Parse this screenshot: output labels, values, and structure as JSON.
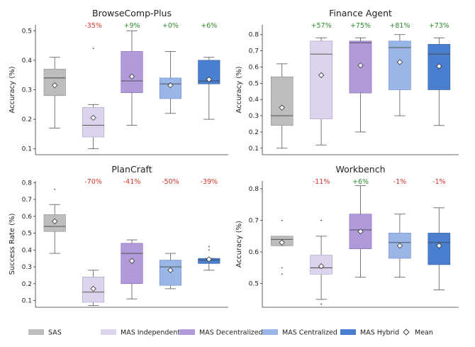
{
  "legend": [
    {
      "label": "SAS",
      "color": "#bdbdbd",
      "stroke": "#8a8a8a"
    },
    {
      "label": "MAS Independent",
      "color": "#dcd4ec",
      "stroke": "#a89cc4"
    },
    {
      "label": "MAS Decentralized",
      "color": "#b19ad9",
      "stroke": "#7f66b0"
    },
    {
      "label": "MAS Centralized",
      "color": "#9ab6e6",
      "stroke": "#6a8cc8"
    },
    {
      "label": "MAS Hybrid",
      "color": "#4a7fd0",
      "stroke": "#2d5aa0"
    },
    {
      "label": "Mean",
      "marker": "diamond"
    }
  ],
  "chart_data": [
    {
      "type": "box",
      "title": "BrowseComp-Plus",
      "ylabel": "Accuracy (%)",
      "ylim": [
        0.08,
        0.52
      ],
      "yticks": [
        0.1,
        0.2,
        0.3,
        0.4,
        0.5
      ],
      "ytick_labels": [
        "0.1",
        "0.2",
        "0.3",
        "0.4",
        "0.5"
      ],
      "series": [
        {
          "name": "SAS",
          "whisker_low": 0.17,
          "q1": 0.28,
          "median": 0.34,
          "q3": 0.37,
          "whisker_high": 0.41,
          "mean": 0.315,
          "outliers": [],
          "annotation": ""
        },
        {
          "name": "MAS Independent",
          "whisker_low": 0.1,
          "q1": 0.14,
          "median": 0.18,
          "q3": 0.24,
          "whisker_high": 0.25,
          "mean": 0.205,
          "outliers": [
            0.44
          ],
          "annotation": "-35%"
        },
        {
          "name": "MAS Decentralized",
          "whisker_low": 0.18,
          "q1": 0.29,
          "median": 0.33,
          "q3": 0.43,
          "whisker_high": 0.5,
          "mean": 0.345,
          "outliers": [],
          "annotation": "+9%"
        },
        {
          "name": "MAS Centralized",
          "whisker_low": 0.22,
          "q1": 0.27,
          "median": 0.32,
          "q3": 0.34,
          "whisker_high": 0.43,
          "mean": 0.315,
          "outliers": [],
          "annotation": "+0%"
        },
        {
          "name": "MAS Hybrid",
          "whisker_low": 0.2,
          "q1": 0.32,
          "median": 0.33,
          "q3": 0.4,
          "whisker_high": 0.41,
          "mean": 0.335,
          "outliers": [],
          "annotation": "+6%"
        }
      ]
    },
    {
      "type": "box",
      "title": "Finance Agent",
      "ylabel": "Accuracy (%)",
      "ylim": [
        0.06,
        0.86
      ],
      "yticks": [
        0.1,
        0.2,
        0.3,
        0.4,
        0.5,
        0.6,
        0.7,
        0.8
      ],
      "ytick_labels": [
        "0.1",
        "0.2",
        "0.3",
        "0.4",
        "0.5",
        "0.6",
        "0.7",
        "0.8"
      ],
      "series": [
        {
          "name": "SAS",
          "whisker_low": 0.1,
          "q1": 0.24,
          "median": 0.3,
          "q3": 0.54,
          "whisker_high": 0.62,
          "mean": 0.35,
          "outliers": [],
          "annotation": ""
        },
        {
          "name": "MAS Independent",
          "whisker_low": 0.12,
          "q1": 0.28,
          "median": 0.68,
          "q3": 0.76,
          "whisker_high": 0.78,
          "mean": 0.55,
          "outliers": [],
          "annotation": "+57%"
        },
        {
          "name": "MAS Decentralized",
          "whisker_low": 0.2,
          "q1": 0.44,
          "median": 0.75,
          "q3": 0.76,
          "whisker_high": 0.78,
          "mean": 0.61,
          "outliers": [],
          "annotation": "+75%"
        },
        {
          "name": "MAS Centralized",
          "whisker_low": 0.3,
          "q1": 0.46,
          "median": 0.72,
          "q3": 0.76,
          "whisker_high": 0.8,
          "mean": 0.63,
          "outliers": [],
          "annotation": "+81%"
        },
        {
          "name": "MAS Hybrid",
          "whisker_low": 0.24,
          "q1": 0.46,
          "median": 0.68,
          "q3": 0.74,
          "whisker_high": 0.78,
          "mean": 0.605,
          "outliers": [],
          "annotation": "+73%"
        }
      ]
    },
    {
      "type": "box",
      "title": "PlanCraft",
      "ylabel": "Success Rate (%)",
      "ylim": [
        0.06,
        0.81
      ],
      "yticks": [
        0.1,
        0.2,
        0.3,
        0.4,
        0.5,
        0.6,
        0.7,
        0.8
      ],
      "ytick_labels": [
        "0.1",
        "0.2",
        "0.3",
        "0.4",
        "0.5",
        "0.6",
        "0.7",
        "0.8"
      ],
      "series": [
        {
          "name": "SAS",
          "whisker_low": 0.38,
          "q1": 0.51,
          "median": 0.54,
          "q3": 0.61,
          "whisker_high": 0.67,
          "mean": 0.57,
          "outliers": [
            0.76
          ],
          "annotation": ""
        },
        {
          "name": "MAS Independent",
          "whisker_low": 0.07,
          "q1": 0.09,
          "median": 0.15,
          "q3": 0.24,
          "whisker_high": 0.28,
          "mean": 0.17,
          "outliers": [],
          "annotation": "-70%"
        },
        {
          "name": "MAS Decentralized",
          "whisker_low": 0.11,
          "q1": 0.2,
          "median": 0.38,
          "q3": 0.44,
          "whisker_high": 0.46,
          "mean": 0.335,
          "outliers": [],
          "annotation": "-41%"
        },
        {
          "name": "MAS Centralized",
          "whisker_low": 0.17,
          "q1": 0.19,
          "median": 0.3,
          "q3": 0.34,
          "whisker_high": 0.38,
          "mean": 0.28,
          "outliers": [],
          "annotation": "-50%"
        },
        {
          "name": "MAS Hybrid",
          "whisker_low": 0.28,
          "q1": 0.32,
          "median": 0.34,
          "q3": 0.35,
          "whisker_high": 0.35,
          "mean": 0.345,
          "outliers": [
            0.4,
            0.42
          ],
          "annotation": "-39%"
        }
      ]
    },
    {
      "type": "box",
      "title": "Workbench",
      "ylabel": "Accuracy (%)",
      "ylim": [
        0.425,
        0.825
      ],
      "yticks": [
        0.5,
        0.6,
        0.7,
        0.8
      ],
      "ytick_labels": [
        "0.5",
        "0.6",
        "0.7",
        "0.8"
      ],
      "series": [
        {
          "name": "SAS",
          "whisker_low": 0.62,
          "q1": 0.62,
          "median": 0.64,
          "q3": 0.65,
          "whisker_high": 0.65,
          "mean": 0.63,
          "outliers": [
            0.53,
            0.55,
            0.7
          ],
          "annotation": ""
        },
        {
          "name": "MAS Independent",
          "whisker_low": 0.45,
          "q1": 0.53,
          "median": 0.55,
          "q3": 0.59,
          "whisker_high": 0.65,
          "mean": 0.555,
          "outliers": [
            0.7,
            0.435
          ],
          "annotation": "-11%"
        },
        {
          "name": "MAS Decentralized",
          "whisker_low": 0.52,
          "q1": 0.61,
          "median": 0.67,
          "q3": 0.72,
          "whisker_high": 0.81,
          "mean": 0.665,
          "outliers": [],
          "annotation": "+6%"
        },
        {
          "name": "MAS Centralized",
          "whisker_low": 0.52,
          "q1": 0.58,
          "median": 0.63,
          "q3": 0.66,
          "whisker_high": 0.72,
          "mean": 0.62,
          "outliers": [],
          "annotation": "-1%"
        },
        {
          "name": "MAS Hybrid",
          "whisker_low": 0.48,
          "q1": 0.56,
          "median": 0.63,
          "q3": 0.66,
          "whisker_high": 0.74,
          "mean": 0.62,
          "outliers": [],
          "annotation": "-1%"
        }
      ]
    }
  ],
  "colors": {
    "positive": "#2e8b2e",
    "negative": "#d9362b",
    "axis": "#333333",
    "whisker": "#555555"
  }
}
